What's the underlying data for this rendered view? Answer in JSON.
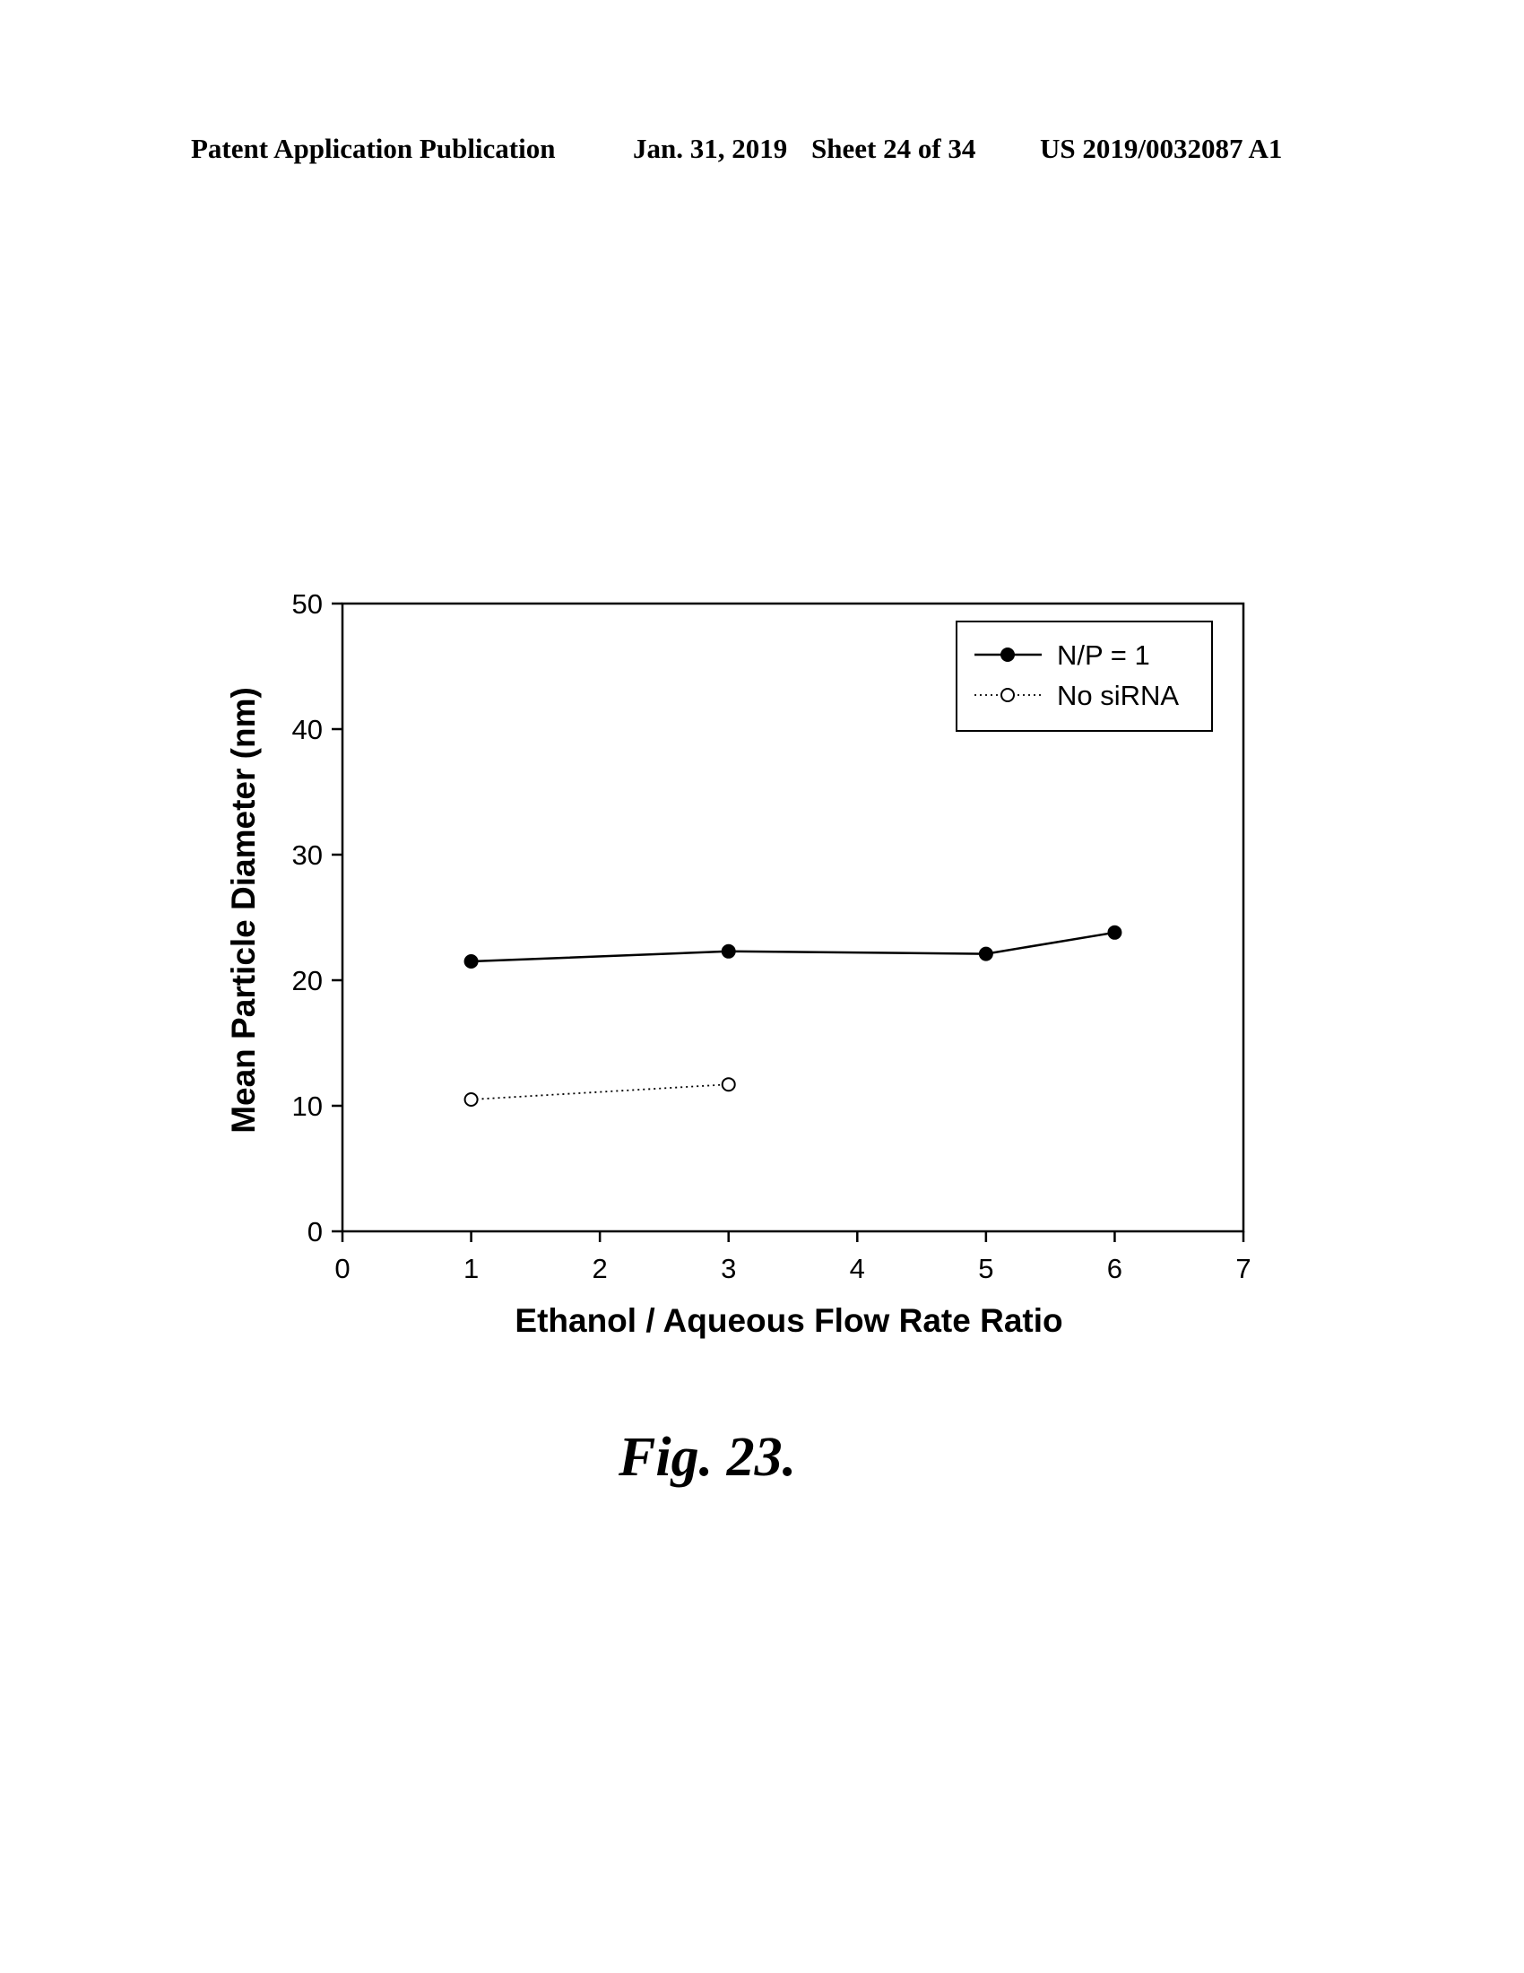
{
  "header": {
    "publication": "Patent Application Publication",
    "date": "Jan. 31, 2019",
    "sheet": "Sheet 24 of 34",
    "number": "US 2019/0032087 A1"
  },
  "figure_label": "Fig. 23.",
  "chart_data": {
    "type": "line",
    "title": "",
    "xlabel": "Ethanol / Aqueous Flow Rate Ratio",
    "ylabel": "Mean Particle Diameter (nm)",
    "xlim": [
      0,
      7
    ],
    "ylim": [
      0,
      50
    ],
    "xticks": [
      0,
      1,
      2,
      3,
      4,
      5,
      6,
      7
    ],
    "yticks": [
      0,
      10,
      20,
      30,
      40,
      50
    ],
    "grid": false,
    "legend_position": "top-right",
    "series": [
      {
        "name": "N/P = 1",
        "marker": "filled-circle",
        "line": "solid",
        "color": "#000000",
        "x": [
          1,
          3,
          5,
          6
        ],
        "y": [
          21.5,
          22.3,
          22.1,
          23.8
        ]
      },
      {
        "name": "No siRNA",
        "marker": "open-circle",
        "line": "dotted",
        "color": "#000000",
        "x": [
          1,
          3
        ],
        "y": [
          10.5,
          11.7
        ]
      }
    ]
  }
}
